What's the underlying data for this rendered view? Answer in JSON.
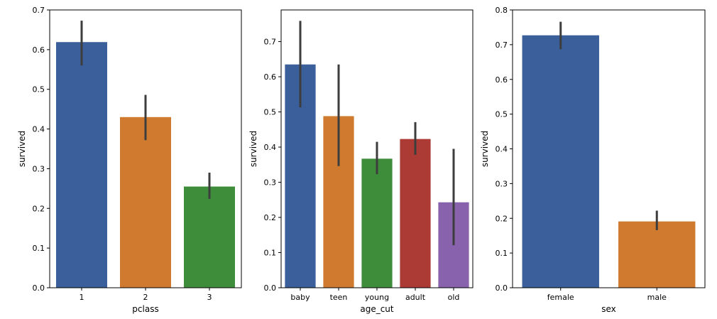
{
  "chart_data": [
    {
      "type": "bar",
      "xlabel": "pclass",
      "ylabel": "survived",
      "ylim": [
        0,
        0.7
      ],
      "yticks": [
        0.0,
        0.1,
        0.2,
        0.3,
        0.4,
        0.5,
        0.6,
        0.7
      ],
      "categories": [
        "1",
        "2",
        "3"
      ],
      "values": [
        0.619,
        0.43,
        0.255
      ],
      "ci": [
        [
          0.56,
          0.673
        ],
        [
          0.372,
          0.486
        ],
        [
          0.224,
          0.29
        ]
      ],
      "colors": [
        "#3a5f9a",
        "#cf7a2f",
        "#3e8d3b"
      ]
    },
    {
      "type": "bar",
      "xlabel": "age_cut",
      "ylabel": "survived",
      "ylim": [
        0,
        0.79
      ],
      "yticks": [
        0.0,
        0.1,
        0.2,
        0.3,
        0.4,
        0.5,
        0.6,
        0.7
      ],
      "categories": [
        "baby",
        "teen",
        "young",
        "adult",
        "old"
      ],
      "values": [
        0.635,
        0.488,
        0.367,
        0.423,
        0.243
      ],
      "ci": [
        [
          0.513,
          0.759
        ],
        [
          0.346,
          0.635
        ],
        [
          0.323,
          0.415
        ],
        [
          0.378,
          0.471
        ],
        [
          0.121,
          0.395
        ]
      ],
      "colors": [
        "#3a5f9a",
        "#cf7a2f",
        "#3e8d3b",
        "#ac3b35",
        "#8862ad"
      ]
    },
    {
      "type": "bar",
      "xlabel": "sex",
      "ylabel": "survived",
      "ylim": [
        0,
        0.8
      ],
      "yticks": [
        0.0,
        0.1,
        0.2,
        0.3,
        0.4,
        0.5,
        0.6,
        0.7,
        0.8
      ],
      "categories": [
        "female",
        "male"
      ],
      "values": [
        0.727,
        0.191
      ],
      "ci": [
        [
          0.687,
          0.766
        ],
        [
          0.166,
          0.222
        ]
      ],
      "colors": [
        "#3a5f9a",
        "#cf7a2f"
      ]
    }
  ]
}
